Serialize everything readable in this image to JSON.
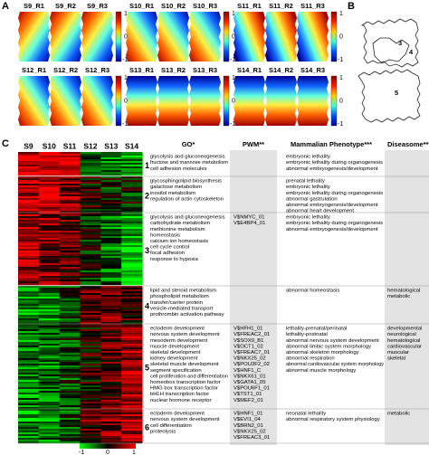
{
  "panel_labels": {
    "a": "A",
    "b": "B",
    "c": "C"
  },
  "panel_a": {
    "groups": [
      [
        "S9_R1",
        "S9_R2",
        "S9_R3"
      ],
      [
        "S10_R1",
        "S10_R2",
        "S10_R3"
      ],
      [
        "S11_R1",
        "S11_R2",
        "S11_R3"
      ],
      [
        "S12_R1",
        "S12_R2",
        "S12_R3"
      ],
      [
        "S13_R1",
        "S13_R2",
        "S13_R3"
      ],
      [
        "S14_R1",
        "S14_R2",
        "S14_R3"
      ]
    ],
    "colorbar": {
      "max": "1",
      "mid": "0",
      "min": "-1"
    }
  },
  "panel_b": {
    "region_labels": [
      "3",
      "4",
      "5"
    ]
  },
  "panel_c": {
    "samples": [
      "S9",
      "S10",
      "S11",
      "S12",
      "S13",
      "S14"
    ],
    "headers": {
      "go": "GO*",
      "pwm": "PWM**",
      "phenotype": "Mammalian Phenotype***",
      "diseasome": "Diseasome****"
    },
    "clusters": [
      {
        "id": "1",
        "go": [
          "glycolysis and gluconeogenesis",
          "fructose and mannose metabolism",
          "cell adhesion molecules"
        ],
        "phenotype": [
          "embryonic lethality",
          "embryonic lethality during organogenesis",
          "abnormal embryogenesis/development"
        ]
      },
      {
        "id": "2",
        "go": [
          "glycosphingolipid biosynthesis",
          "galactose metabolism",
          "inositol metabolism",
          "regulation of actin cytoskeleton"
        ],
        "phenotype": [
          "prenatal lethality",
          "embryonic lethality",
          "embryonic lethality during organogenesis",
          "abnormal gastrulation",
          "abnormal embryogenesis/development",
          "abnormal heart development"
        ]
      },
      {
        "id": "3",
        "go": [
          "glycolysis and gluconeogenesis",
          "carbohydrate metabolism",
          "methionine metabolism",
          "homeostasis",
          "calcium ion homeostasis",
          "cell cycle control",
          "focal adhesion",
          "response to hypoxia"
        ],
        "pwm": [
          "V$NMYC_01",
          "V$E4BP4_01"
        ],
        "phenotype": [
          "embryonic lethality",
          "embryonic lethality during organogenesis",
          "abnormal embryogenesis/development"
        ]
      },
      {
        "id": "4",
        "go": [
          "lipid and steroid metabolism",
          "phospholipid metabolism",
          "transfer/carrier protein",
          "vesicle-mediated transport",
          "prothrombin activation pathway"
        ],
        "phenotype": [
          "abnormal homeostasis"
        ],
        "diseasome": [
          "hematological",
          "metabolic"
        ]
      },
      {
        "id": "5",
        "go": [
          "ectoderm development",
          "nervous system development",
          "mesoderm development",
          "muscle development",
          "skeletal development",
          "kidney development",
          "skeletal muscle development",
          "segment specification",
          "cell proliferation and differentiation",
          "homeobox transcription factor",
          "HMG box transcription factor",
          "bHLH transcription factor",
          "nuclear hormone receptor"
        ],
        "pwm": [
          "V$HFH1_01",
          "V$FREAC2_01",
          "V$SOX9_B1",
          "V$OCT1_02",
          "V$FREAC7_01",
          "V$NKX25_02",
          "V$POU3F2_02",
          "V$HNF1_C",
          "V$NKX61_01",
          "V$GATA1_05",
          "V$POU6F1_01",
          "V$TST1_01",
          "V$MEF2_01"
        ],
        "phenotype": [
          "lethality-prenatal/perinatal",
          "lethality-postnatal",
          "abnormal nervous system development",
          "abnormal limbic system morphology",
          "abnormal skeleton morphology",
          "abnormal respiration",
          "abnormal cardiovascular system morphology",
          "abnormal muscle morphology"
        ],
        "diseasome": [
          "developmental",
          "neurological",
          "hematological",
          "cardiovascular",
          "muscular",
          "skeletal"
        ]
      },
      {
        "id": "6",
        "go": [
          "ectoderm development",
          "nervous system development",
          "cell differentiation",
          "proteolysis"
        ],
        "pwm": [
          "V$HNF1_01",
          "V$EVI1_04",
          "V$BRN2_01",
          "V$NKX25_02",
          "V$FREAC3_01"
        ],
        "phenotype": [
          "neonatal lethality",
          "abnormal respiratory system physiology"
        ],
        "diseasome": [
          "metabolic"
        ]
      }
    ],
    "colorbar": {
      "min": "-1",
      "mid": "0",
      "max": "1"
    }
  }
}
